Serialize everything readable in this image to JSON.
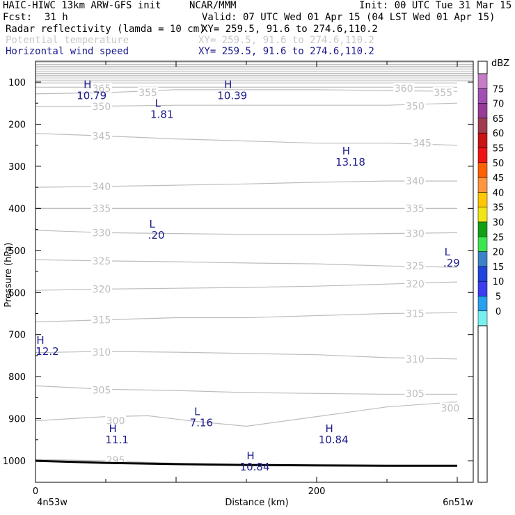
{
  "header": {
    "model": "HAIC-HIWC 13km ARW-GFS init",
    "org": "NCAR/MMM",
    "init": "Init: 00 UTC Tue 31 Mar 15",
    "fcst_label": "Fcst:",
    "fcst_value": "31 h",
    "valid": "Valid: 07 UTC Wed 01 Apr 15 (04 LST Wed 01 Apr 15)",
    "fields": [
      {
        "name": "Radar reflectivity (lamda = 10 cm)",
        "xy": "XY= 259.5, 91.6 to 274.6,110.2",
        "color": "#000000"
      },
      {
        "name": "Potential temperature",
        "xy": "XY= 259.5, 91.6 to 274.6,110.2",
        "color": "#c8c8c8"
      },
      {
        "name": "Horizontal wind speed",
        "xy": "XY= 259.5, 91.6 to 274.6,110.2",
        "color": "#1a1a8c"
      }
    ]
  },
  "chart_data": {
    "type": "cross-section",
    "ylabel": "Pressure (hPa)",
    "xlabel": "Distance (km)",
    "x_ticks": [
      0,
      200
    ],
    "x_range": [
      0,
      300
    ],
    "y_ticks": [
      100,
      200,
      300,
      400,
      500,
      600,
      700,
      800,
      900,
      1000
    ],
    "y_range_hPa": [
      50,
      1050
    ],
    "left_end_label": "4n53w",
    "right_end_label": "6n51w",
    "surface_pressure": [
      [
        0,
        1000
      ],
      [
        50,
        1005
      ],
      [
        100,
        1008
      ],
      [
        150,
        1010
      ],
      [
        200,
        1011
      ],
      [
        250,
        1012
      ],
      [
        300,
        1012
      ]
    ],
    "theta_contours": [
      {
        "theta": 295,
        "points": [
          [
            0,
            997
          ],
          [
            50,
            1000
          ],
          [
            100,
            1006
          ],
          [
            150,
            1010
          ],
          [
            200,
            1012
          ],
          [
            250,
            1013
          ],
          [
            300,
            1013
          ]
        ],
        "labels": [
          [
            57,
            998
          ]
        ]
      },
      {
        "theta": 300,
        "points": [
          [
            0,
            905
          ],
          [
            50,
            895
          ],
          [
            80,
            893
          ],
          [
            110,
            905
          ],
          [
            150,
            918
          ],
          [
            200,
            895
          ],
          [
            250,
            872
          ],
          [
            300,
            860
          ]
        ],
        "labels": [
          [
            57,
            905
          ],
          [
            295,
            875
          ]
        ]
      },
      {
        "theta": 305,
        "points": [
          [
            0,
            822
          ],
          [
            50,
            830
          ],
          [
            100,
            833
          ],
          [
            150,
            838
          ],
          [
            200,
            840
          ],
          [
            250,
            842
          ],
          [
            300,
            842
          ]
        ],
        "labels": [
          [
            47,
            832
          ],
          [
            270,
            840
          ]
        ]
      },
      {
        "theta": 310,
        "points": [
          [
            0,
            743
          ],
          [
            50,
            740
          ],
          [
            100,
            742
          ],
          [
            150,
            745
          ],
          [
            200,
            748
          ],
          [
            250,
            755
          ],
          [
            300,
            758
          ]
        ],
        "labels": [
          [
            47,
            742
          ],
          [
            270,
            758
          ]
        ]
      },
      {
        "theta": 315,
        "points": [
          [
            0,
            670
          ],
          [
            50,
            665
          ],
          [
            100,
            660
          ],
          [
            150,
            660
          ],
          [
            200,
            655
          ],
          [
            250,
            650
          ],
          [
            300,
            648
          ]
        ],
        "labels": [
          [
            47,
            665
          ],
          [
            270,
            650
          ]
        ]
      },
      {
        "theta": 320,
        "points": [
          [
            0,
            595
          ],
          [
            50,
            592
          ],
          [
            100,
            590
          ],
          [
            150,
            588
          ],
          [
            200,
            585
          ],
          [
            250,
            580
          ],
          [
            300,
            575
          ]
        ],
        "labels": [
          [
            47,
            592
          ],
          [
            270,
            580
          ]
        ]
      },
      {
        "theta": 325,
        "points": [
          [
            0,
            522
          ],
          [
            50,
            525
          ],
          [
            100,
            527
          ],
          [
            150,
            530
          ],
          [
            200,
            532
          ],
          [
            250,
            537
          ],
          [
            300,
            540
          ]
        ],
        "labels": [
          [
            47,
            525
          ],
          [
            270,
            537
          ]
        ]
      },
      {
        "theta": 330,
        "points": [
          [
            0,
            452
          ],
          [
            50,
            458
          ],
          [
            100,
            460
          ],
          [
            150,
            462
          ],
          [
            200,
            462
          ],
          [
            250,
            460
          ],
          [
            300,
            458
          ]
        ],
        "labels": [
          [
            47,
            458
          ],
          [
            270,
            460
          ]
        ]
      },
      {
        "theta": 335,
        "points": [
          [
            0,
            400
          ],
          [
            50,
            400
          ],
          [
            100,
            400
          ],
          [
            150,
            400
          ],
          [
            200,
            400
          ],
          [
            250,
            400
          ],
          [
            300,
            400
          ]
        ],
        "labels": [
          [
            47,
            400
          ],
          [
            270,
            400
          ]
        ]
      },
      {
        "theta": 340,
        "points": [
          [
            0,
            350
          ],
          [
            50,
            348
          ],
          [
            100,
            345
          ],
          [
            150,
            342
          ],
          [
            200,
            338
          ],
          [
            250,
            335
          ],
          [
            300,
            335
          ]
        ],
        "labels": [
          [
            47,
            348
          ],
          [
            270,
            335
          ]
        ]
      },
      {
        "theta": 345,
        "points": [
          [
            0,
            222
          ],
          [
            50,
            228
          ],
          [
            100,
            235
          ],
          [
            150,
            240
          ],
          [
            200,
            245
          ],
          [
            250,
            245
          ],
          [
            300,
            250
          ]
        ],
        "labels": [
          [
            47,
            228
          ],
          [
            275,
            245
          ]
        ]
      },
      {
        "theta": 350,
        "points": [
          [
            0,
            158
          ],
          [
            50,
            157
          ],
          [
            100,
            155
          ],
          [
            150,
            155
          ],
          [
            200,
            155
          ],
          [
            250,
            155
          ],
          [
            300,
            150
          ]
        ],
        "labels": [
          [
            47,
            158
          ],
          [
            270,
            157
          ]
        ]
      },
      {
        "theta": 355,
        "points": [
          [
            0,
            128
          ],
          [
            50,
            125
          ],
          [
            100,
            118
          ],
          [
            150,
            118
          ],
          [
            200,
            118
          ],
          [
            250,
            120
          ],
          [
            300,
            122
          ]
        ],
        "labels": [
          [
            80,
            125
          ],
          [
            290,
            125
          ]
        ]
      },
      {
        "theta": 360,
        "points": [
          [
            0,
            112
          ],
          [
            50,
            112
          ],
          [
            100,
            112
          ],
          [
            150,
            112
          ],
          [
            200,
            112
          ],
          [
            250,
            112
          ],
          [
            300,
            112
          ]
        ],
        "labels": [
          [
            262,
            115
          ]
        ]
      },
      {
        "theta": 365,
        "points": [
          [
            0,
            102
          ],
          [
            300,
            102
          ]
        ],
        "labels": [
          [
            47,
            115
          ]
        ]
      }
    ],
    "wind_extrema": [
      {
        "type": "H",
        "value": "10.79",
        "x": 37,
        "p": 117
      },
      {
        "type": "L",
        "value": "1.81",
        "x": 87,
        "p": 162
      },
      {
        "type": "H",
        "value": "10.39",
        "x": 137,
        "p": 117
      },
      {
        "type": "H",
        "value": "13.18",
        "x": 221,
        "p": 275
      },
      {
        "type": "L",
        "value": ".20",
        "x": 83,
        "p": 449
      },
      {
        "type": "L",
        "value": ".29",
        "x": 293,
        "p": 515
      },
      {
        "type": "H",
        "value": "12.2",
        "x": 0,
        "p": 725
      },
      {
        "type": "L",
        "value": "7.16",
        "x": 115,
        "p": 895
      },
      {
        "type": "H",
        "value": "11.1",
        "x": 55,
        "p": 935
      },
      {
        "type": "H",
        "value": "10.84",
        "x": 209,
        "p": 935
      },
      {
        "type": "H",
        "value": "10.84",
        "x": 153,
        "p": 1000
      }
    ],
    "colorbar": {
      "title": "dBZ",
      "labels": [
        75,
        70,
        65,
        60,
        55,
        50,
        45,
        40,
        35,
        30,
        25,
        20,
        15,
        10,
        5,
        0
      ],
      "colors": [
        "#c87cc8",
        "#a050b4",
        "#963c96",
        "#a03c50",
        "#c81414",
        "#f01414",
        "#ff6000",
        "#ff9640",
        "#ffc800",
        "#f0e614",
        "#14a014",
        "#3ce650",
        "#3c82c8",
        "#1e46dc",
        "#3c3cf0",
        "#28a0f0",
        "#78f0f0"
      ]
    }
  }
}
